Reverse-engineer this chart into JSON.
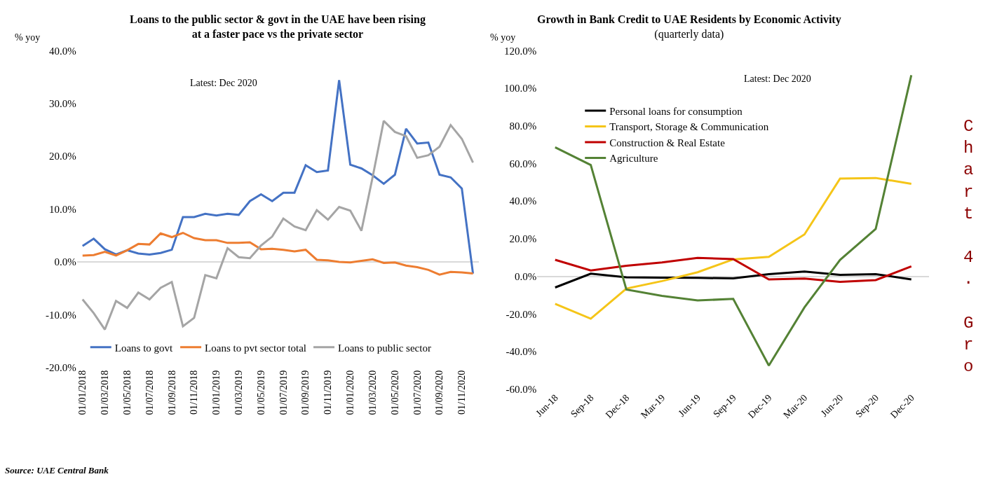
{
  "chart_data": [
    {
      "type": "line",
      "title": "Loans to the public sector & govt in the UAE have been rising at a faster pace vs the private sector",
      "ylabel": "% yoy",
      "annotations": [
        "Latest: Dec 2020",
        "Source: UAE Central Bank"
      ],
      "categories": [
        "01/01/2018",
        null,
        "01/03/2018",
        null,
        "01/05/2018",
        null,
        "01/07/2018",
        null,
        "01/09/2018",
        null,
        "01/11/2018",
        null,
        "01/01/2019",
        null,
        "01/03/2019",
        null,
        "01/05/2019",
        null,
        "01/07/2019",
        null,
        "01/09/2019",
        null,
        "01/11/2019",
        null,
        "01/01/2020",
        null,
        "01/03/2020",
        null,
        "01/05/2020",
        null,
        "01/07/2020",
        null,
        "01/09/2020",
        null,
        "01/11/2020",
        null
      ],
      "series": [
        {
          "name": "Loans to govt",
          "color": "#4472c4",
          "values": [
            3.0,
            4.4,
            2.4,
            1.4,
            2.2,
            1.6,
            1.4,
            1.7,
            2.3,
            8.5,
            8.5,
            9.1,
            8.8,
            9.1,
            8.9,
            11.5,
            12.8,
            11.5,
            13.1,
            13.1,
            18.3,
            17.0,
            17.3,
            34.4,
            18.4,
            17.7,
            16.4,
            14.8,
            16.5,
            25.2,
            22.4,
            22.6,
            16.5,
            16.0,
            13.9,
            -2.2
          ]
        },
        {
          "name": "Loans to pvt sector total",
          "color": "#ed7d31",
          "values": [
            1.2,
            1.3,
            1.9,
            1.2,
            2.2,
            3.4,
            3.3,
            5.4,
            4.7,
            5.5,
            4.5,
            4.1,
            4.1,
            3.6,
            3.6,
            3.7,
            2.4,
            2.5,
            2.3,
            2.0,
            2.3,
            0.4,
            0.3,
            0.0,
            -0.1,
            0.2,
            0.5,
            -0.2,
            -0.1,
            -0.7,
            -1.0,
            -1.5,
            -2.4,
            -1.9,
            -2.0,
            -2.2
          ]
        },
        {
          "name": "Loans to public sector",
          "color": "#a5a5a5",
          "values": [
            -7.1,
            -9.7,
            -12.8,
            -7.4,
            -8.7,
            -5.8,
            -7.1,
            -4.9,
            -3.8,
            -12.2,
            -10.6,
            -2.5,
            -3.1,
            2.6,
            0.9,
            0.7,
            3.1,
            4.8,
            8.2,
            6.7,
            6.0,
            9.8,
            8.0,
            10.4,
            9.7,
            5.9,
            16.0,
            26.7,
            24.6,
            23.8,
            19.7,
            20.2,
            21.8,
            25.9,
            23.3,
            18.8
          ]
        }
      ],
      "ylim": [
        -20,
        40
      ],
      "yticks": [
        {
          "value": -20,
          "label": "-20.0%"
        },
        {
          "value": -10,
          "label": "-10.0%"
        },
        {
          "value": 0,
          "label": "0.0%"
        },
        {
          "value": 10,
          "label": "10.0%"
        },
        {
          "value": 20,
          "label": "20.0%"
        },
        {
          "value": 30,
          "label": "30.0%"
        },
        {
          "value": 40,
          "label": "40.0%"
        }
      ],
      "legend": "bottom",
      "marker": "none",
      "line_style": "solid"
    },
    {
      "type": "line",
      "title": "Growth in Bank Credit to UAE Residents by Economic Activity",
      "subtitle": "(quarterly data)",
      "ylabel": "% yoy",
      "annotations": [
        "Latest: Dec 2020",
        "Chart 4. Gro"
      ],
      "categories": [
        "Jun-18",
        "Sep-18",
        "Dec-18",
        "Mar-19",
        "Jun-19",
        "Sep-19",
        "Dec-19",
        "Mar-20",
        "Jun-20",
        "Sep-20",
        "Dec-20"
      ],
      "series": [
        {
          "name": "Personal loans for consumption",
          "color": "#000000",
          "values": [
            -5.9,
            1.4,
            -0.5,
            -0.7,
            -0.8,
            -1.1,
            1.2,
            2.6,
            0.8,
            1.2,
            -1.6
          ]
        },
        {
          "name": "Transport, Storage & Communication",
          "color": "#f5c518",
          "values": [
            -14.6,
            -22.5,
            -6.5,
            -2.5,
            2.2,
            9.0,
            10.4,
            22.3,
            52.0,
            52.3,
            49.2
          ]
        },
        {
          "name": "Construction & Real Estate",
          "color": "#c00000",
          "values": [
            8.8,
            3.1,
            5.6,
            7.4,
            9.8,
            9.2,
            -1.6,
            -1.2,
            -2.9,
            -2.0,
            5.3
          ]
        },
        {
          "name": "Agriculture",
          "color": "#548235",
          "values": [
            68.6,
            59.2,
            -7.0,
            -10.4,
            -12.8,
            -12.0,
            -47.4,
            -16.5,
            8.8,
            25.2,
            106.9
          ]
        }
      ],
      "ylim": [
        -60,
        120
      ],
      "yticks": [
        {
          "value": -60,
          "label": "-60.0%"
        },
        {
          "value": -40,
          "label": "-40.0%"
        },
        {
          "value": -20,
          "label": "-20.0%"
        },
        {
          "value": 0,
          "label": "0.0%"
        },
        {
          "value": 20,
          "label": "20.0%"
        },
        {
          "value": 40,
          "label": "40.0%"
        },
        {
          "value": 60,
          "label": "60.0%"
        },
        {
          "value": 80,
          "label": "80.0%"
        },
        {
          "value": 100,
          "label": "100.0%"
        },
        {
          "value": 120,
          "label": "120.0%"
        }
      ],
      "legend": "top left",
      "marker": "none",
      "line_style": "solid"
    }
  ]
}
